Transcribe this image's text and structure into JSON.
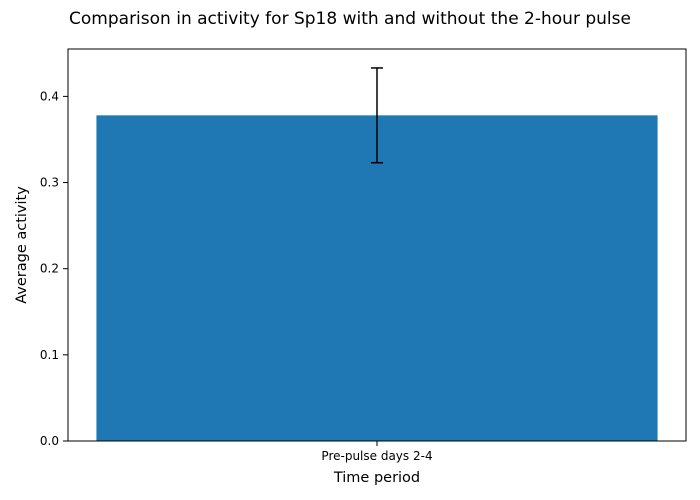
{
  "chart_data": {
    "type": "bar",
    "title": "Comparison in activity for Sp18 with and without the 2-hour pulse",
    "xlabel": "Time period",
    "ylabel": "Average activity",
    "categories": [
      "Pre-pulse days 2-4"
    ],
    "series": [
      {
        "values": [
          0.378
        ],
        "error": [
          0.055
        ],
        "color": "#1f77b4"
      }
    ],
    "ylim": [
      0,
      0.455
    ],
    "yticks": [
      0.0,
      0.1,
      0.2,
      0.3,
      0.4
    ],
    "ytick_labels": [
      "0.0",
      "0.1",
      "0.2",
      "0.3",
      "0.4"
    ],
    "grid": false,
    "error_bar_color": "#000000"
  }
}
